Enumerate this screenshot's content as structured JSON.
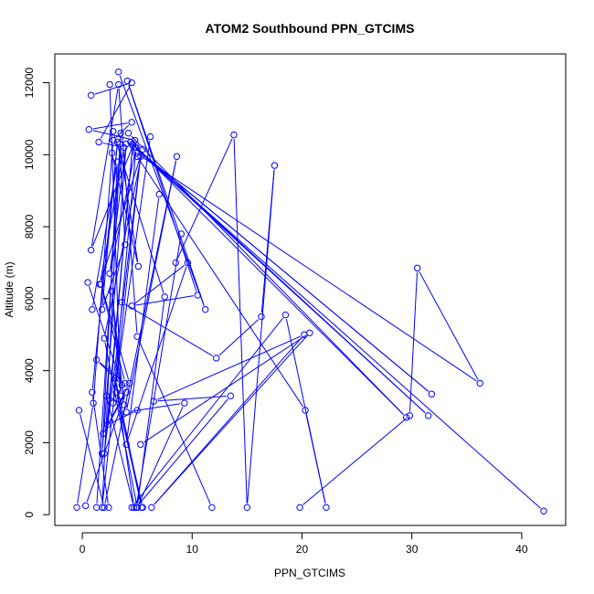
{
  "chart_data": {
    "type": "line",
    "title": "ATOM2 Southbound PPN_GTCIMS",
    "xlabel": "PPN_GTCIMS",
    "ylabel": "Altitude (m)",
    "xlim": [
      -2.5,
      44
    ],
    "ylim": [
      -300,
      12800
    ],
    "xticks": [
      0,
      10,
      20,
      30,
      40
    ],
    "xtick_labels": [
      "0",
      "10",
      "20",
      "30",
      "40"
    ],
    "yticks": [
      0,
      2000,
      4000,
      6000,
      8000,
      10000,
      12000
    ],
    "ytick_labels": [
      "0",
      "2000",
      "4000",
      "6000",
      "8000",
      "10000",
      "12000"
    ],
    "grid": false,
    "legend": "none",
    "color": "#0000ff",
    "marker": "open-circle",
    "series": [
      {
        "x": [
          -0.5,
          1.0,
          2.8,
          4.5,
          0.6,
          4.8,
          0.8,
          3.3,
          5.0,
          11.8
        ],
        "y": [
          200,
          3100,
          10400,
          10900,
          10700,
          10400,
          7350,
          11950,
          4950,
          200
        ]
      },
      {
        "x": [
          0.8,
          4.5,
          1.5,
          3.8,
          1.6,
          5.5,
          2.0,
          5.0
        ],
        "y": [
          11650,
          12000,
          10350,
          10200,
          6400,
          10150,
          4900,
          200
        ]
      },
      {
        "x": [
          0.9,
          3.2,
          1.8,
          4.0,
          2.5,
          4.9,
          2.8,
          6.2
        ],
        "y": [
          5700,
          9800,
          1700,
          10300,
          6700,
          10200,
          3100,
          10500
        ]
      },
      {
        "x": [
          1.3,
          3.5,
          1.8,
          5.3,
          2.0,
          4.6,
          2.3,
          5.0
        ],
        "y": [
          200,
          10600,
          200,
          9950,
          1700,
          10300,
          2500,
          2900
        ]
      },
      {
        "x": [
          4.2,
          29.5,
          4.4,
          31.5,
          4.6,
          31.8,
          4.8,
          42.0
        ],
        "y": [
          10600,
          2700,
          10350,
          2750,
          10250,
          3350,
          10200,
          100
        ]
      },
      {
        "x": [
          4.9,
          36.2,
          30.5,
          29.8,
          19.8
        ],
        "y": [
          10050,
          3650,
          6850,
          2750,
          200
        ]
      },
      {
        "x": [
          5.0,
          20.3,
          22.2,
          18.5,
          4.5
        ],
        "y": [
          9950,
          2900,
          200,
          5550,
          200
        ]
      },
      {
        "x": [
          3.6,
          12.2,
          16.3,
          17.5,
          15.0,
          13.8,
          8.5
        ],
        "y": [
          5900,
          4350,
          5500,
          9700,
          200,
          10550,
          7000
        ]
      },
      {
        "x": [
          5.3,
          20.7,
          6.3,
          20.2,
          6.5,
          13.5,
          4.9,
          9.0
        ],
        "y": [
          1950,
          5050,
          200,
          5000,
          3150,
          3300,
          200,
          7800
        ]
      },
      {
        "x": [
          -0.3,
          2.0,
          8.6,
          4.0,
          9.3,
          5.0,
          7.5,
          2.8
        ],
        "y": [
          2900,
          200,
          9950,
          2850,
          3100,
          200,
          6050,
          10650
        ]
      },
      {
        "x": [
          3.3,
          11.2,
          4.1,
          10.5,
          4.5,
          9.6,
          4.0,
          7.0
        ],
        "y": [
          12300,
          5700,
          12050,
          6100,
          5800,
          7000,
          1950,
          8900
        ]
      },
      {
        "x": [
          0.5,
          3.6,
          1.3,
          3.9,
          1.7,
          4.3,
          1.9,
          4.0,
          0.3
        ],
        "y": [
          6450,
          3600,
          4300,
          3650,
          6400,
          3650,
          2250,
          3400,
          250
        ]
      },
      {
        "x": [
          2.5,
          3.5,
          2.7,
          3.8,
          2.2,
          4.7,
          3.0,
          5.4,
          3.1,
          5.5
        ],
        "y": [
          11950,
          3300,
          6200,
          3050,
          3300,
          200,
          3800,
          200,
          3400,
          200
        ]
      },
      {
        "x": [
          2.7,
          5.1,
          3.4,
          3.9,
          1.8,
          3.2,
          0.9,
          2.4
        ],
        "y": [
          10050,
          6900,
          10300,
          7500,
          5700,
          10350,
          3400,
          200
        ]
      }
    ]
  }
}
